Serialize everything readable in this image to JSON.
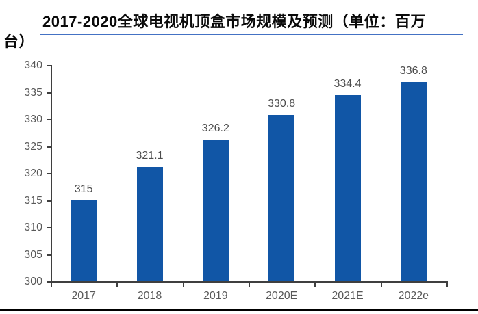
{
  "header": {
    "title_full": "2017-2020全球电视机顶盒市场规模及预测（单位：百万台）",
    "title_line1": "2017-2020全球电视机顶盒市场规模及预测（单位：百万",
    "title_line2": "台）"
  },
  "colors": {
    "bar": "#1156A6",
    "axis": "#3f3f3f",
    "tick_label": "#595959",
    "data_label": "#4d4d4d",
    "title_underline": "#4472C4",
    "bottom_rule": "#000000"
  },
  "chart_data": {
    "type": "bar",
    "title": "2017-2020全球电视机顶盒市场规模及预测（单位：百万台）",
    "categories": [
      "2017",
      "2018",
      "2019",
      "2020E",
      "2021E",
      "2022e"
    ],
    "values": [
      315,
      321.1,
      326.2,
      330.8,
      334.4,
      336.8
    ],
    "data_labels": [
      "315",
      "321.1",
      "326.2",
      "330.8",
      "334.4",
      "336.8"
    ],
    "xlabel": "",
    "ylabel": "",
    "ylim": [
      300,
      340
    ],
    "yticks": [
      300,
      305,
      310,
      315,
      320,
      325,
      330,
      335,
      340
    ],
    "grid": false,
    "legend": "none",
    "bar_color": "#1156A6"
  }
}
